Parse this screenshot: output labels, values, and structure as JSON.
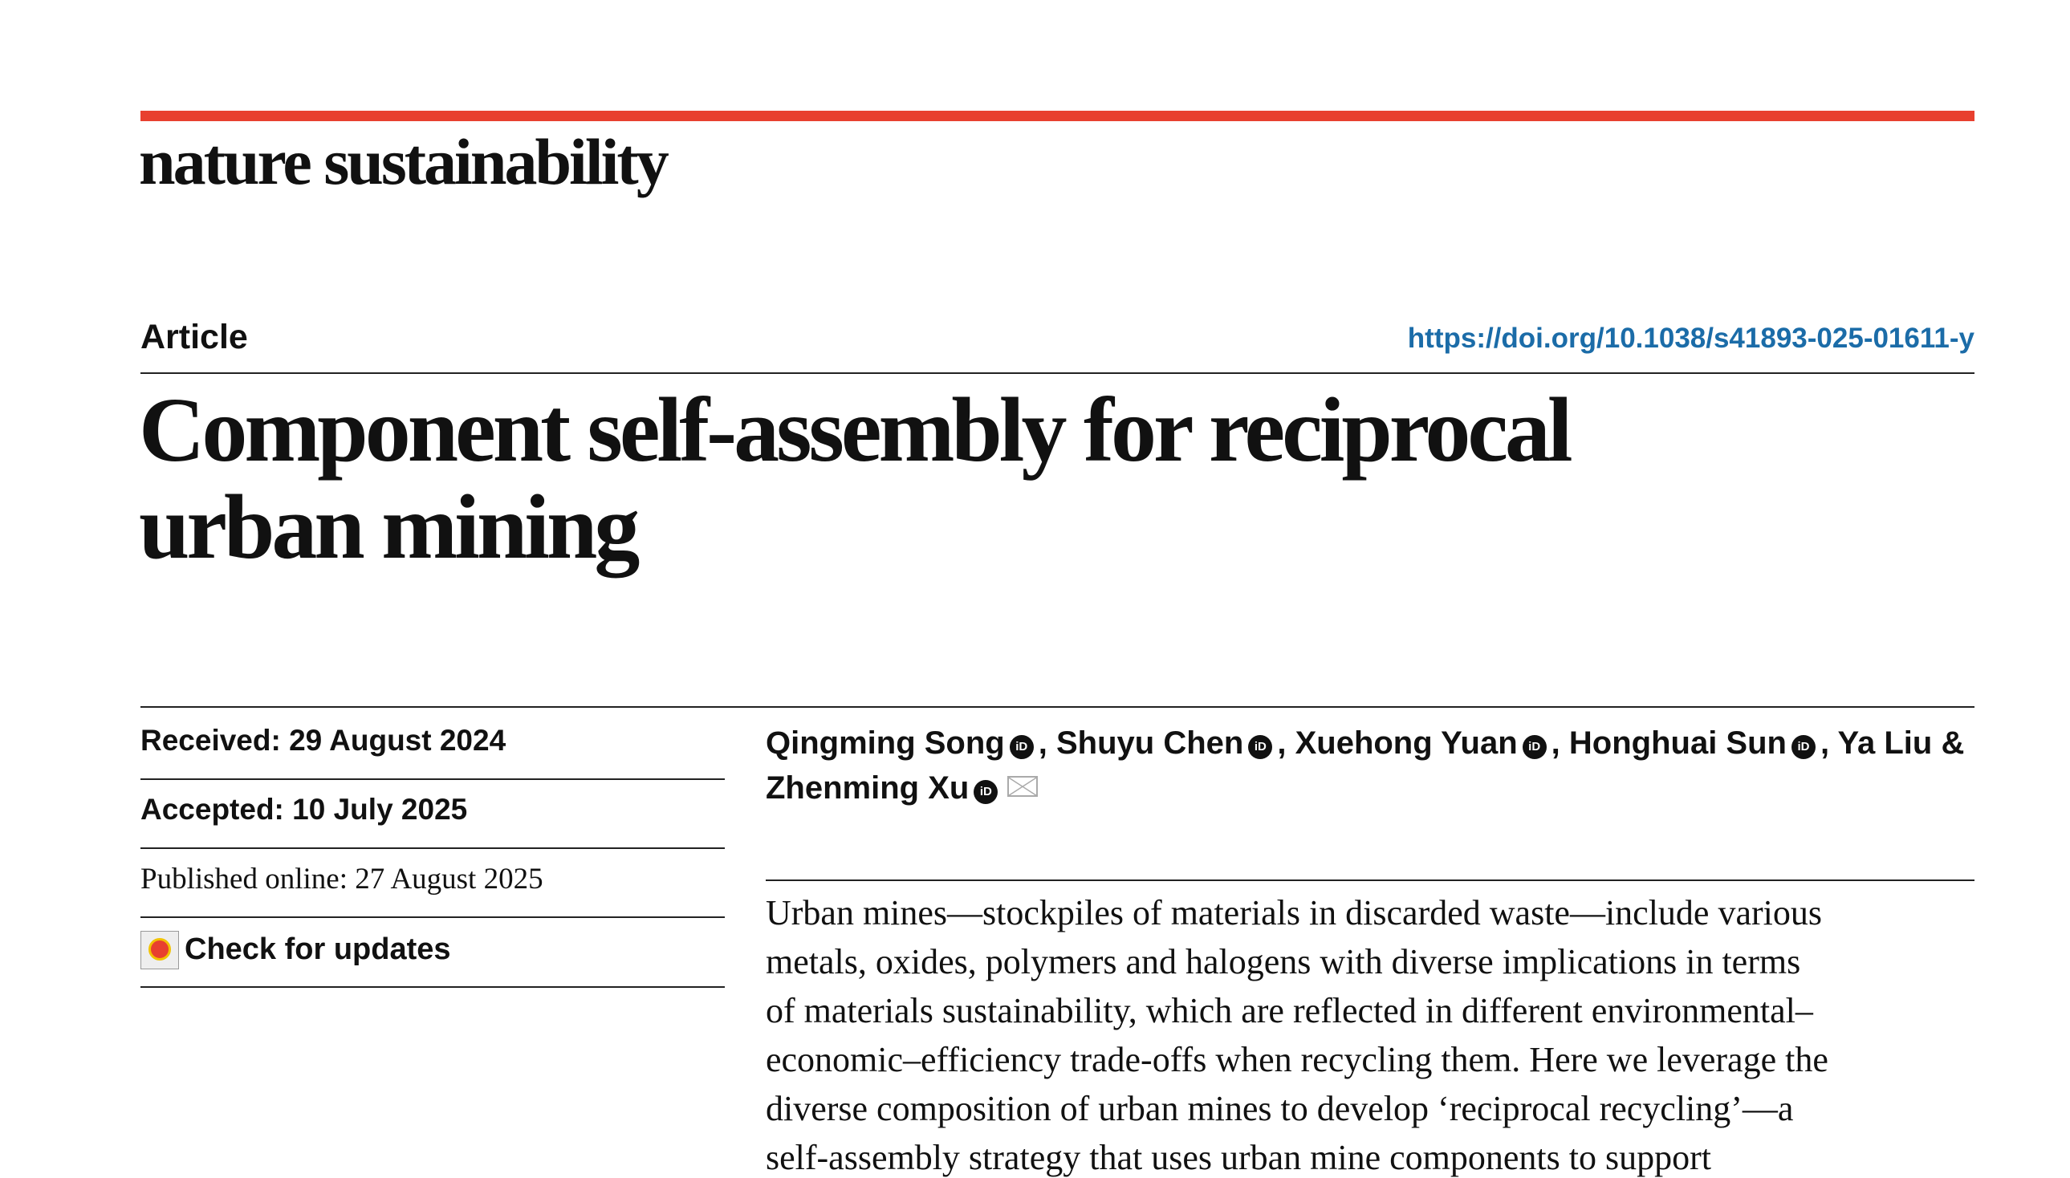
{
  "header": {
    "journal": "nature sustainability"
  },
  "article": {
    "type": "Article",
    "doi": "https://doi.org/10.1038/s41893-025-01611-y",
    "title_lines": [
      "Component self-assembly for reciprocal",
      "urban mining"
    ]
  },
  "dates": [
    {
      "label": "Received:",
      "value": "29 August 2024"
    },
    {
      "label": "Accepted:",
      "value": "10 July 2025"
    },
    {
      "label": "Published online:",
      "value": "27 August 2025"
    }
  ],
  "check_updates": "Check for updates",
  "authors": [
    "Qingming Song",
    "Shuyu Chen",
    "Xuehong Yuan",
    "Honghuai Sun",
    "Ya Liu",
    "Zhenming Xu"
  ],
  "author_separators": [
    ",",
    ",",
    ",",
    ",",
    "&"
  ],
  "abstract_lines": [
    "Urban mines—stockpiles of materials in discarded waste—include various",
    "metals, oxides, polymers and halogens with diverse implications in terms",
    "of materials sustainability, which are reflected in different environmental–",
    "economic–efficiency trade-offs when recycling them. Here we leverage the",
    "diverse composition of urban mines to develop ‘reciprocal recycling’—a",
    "self-assembly strategy that uses urban mine components to support"
  ]
}
